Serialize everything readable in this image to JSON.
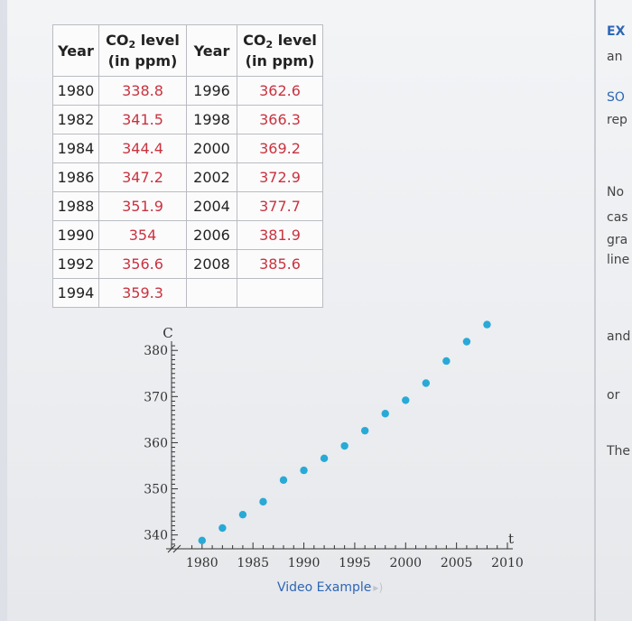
{
  "table": {
    "header": {
      "year": "Year",
      "level_main": "CO",
      "level_sub": "2",
      "level_word": " level",
      "level_unit": "(in ppm)"
    },
    "rows": [
      {
        "y1": "1980",
        "v1": "338.8",
        "y2": "1996",
        "v2": "362.6"
      },
      {
        "y1": "1982",
        "v1": "341.5",
        "y2": "1998",
        "v2": "366.3"
      },
      {
        "y1": "1984",
        "v1": "344.4",
        "y2": "2000",
        "v2": "369.2"
      },
      {
        "y1": "1986",
        "v1": "347.2",
        "y2": "2002",
        "v2": "372.9"
      },
      {
        "y1": "1988",
        "v1": "351.9",
        "y2": "2004",
        "v2": "377.7"
      },
      {
        "y1": "1990",
        "v1": "354",
        "y2": "2006",
        "v2": "381.9"
      },
      {
        "y1": "1992",
        "v1": "356.6",
        "y2": "2008",
        "v2": "385.6"
      },
      {
        "y1": "1994",
        "v1": "359.3",
        "y2": "",
        "v2": ""
      }
    ]
  },
  "chart_data": {
    "type": "scatter",
    "title": "",
    "xlabel": "t",
    "ylabel": "C",
    "xlim": [
      1977,
      2010
    ],
    "ylim": [
      337,
      382
    ],
    "grid": false,
    "point_color": "#29a9d6",
    "x_ticks": [
      "1980",
      "1985",
      "1990",
      "1995",
      "2000",
      "2005",
      "2010"
    ],
    "y_ticks": [
      "340",
      "350",
      "360",
      "370",
      "380"
    ],
    "series": [
      {
        "x": [
          1980,
          1982,
          1984,
          1986,
          1988,
          1990,
          1992,
          1994,
          1996,
          1998,
          2000,
          2002,
          2004,
          2006,
          2008
        ],
        "y": [
          338.8,
          341.5,
          344.4,
          347.2,
          351.9,
          354,
          356.6,
          359.3,
          362.6,
          366.3,
          369.2,
          372.9,
          377.7,
          381.9,
          385.6
        ]
      }
    ]
  },
  "video_link": {
    "label": "Video Example",
    "icon": "speaker-icon"
  },
  "right_edge": [
    {
      "text": "EX",
      "style": "blue-bold"
    },
    {
      "text": "an",
      "style": "plain"
    },
    {
      "text": "SO",
      "style": "blue"
    },
    {
      "text": "rep",
      "style": "plain"
    },
    {
      "text": "No",
      "style": "plain"
    },
    {
      "text": "cas",
      "style": "plain"
    },
    {
      "text": "gra",
      "style": "plain"
    },
    {
      "text": "line",
      "style": "plain"
    },
    {
      "text": "and",
      "style": "plain"
    },
    {
      "text": "or",
      "style": "plain"
    },
    {
      "text": "The",
      "style": "plain"
    }
  ]
}
